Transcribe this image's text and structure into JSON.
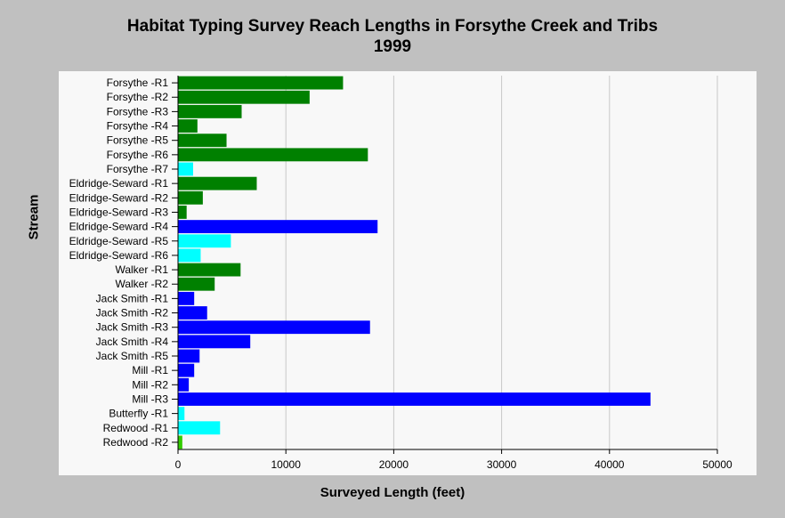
{
  "chart_data": {
    "type": "bar",
    "orientation": "horizontal",
    "title": "Habitat Typing Survey Reach Lengths in Forsythe Creek and Tribs",
    "subtitle": "1999",
    "xlabel": "Surveyed Length (feet)",
    "ylabel": "Stream",
    "xlim": [
      0,
      50000
    ],
    "xticks": [
      "0",
      "10000",
      "20000",
      "30000",
      "40000",
      "50000"
    ],
    "grid": "vertical",
    "legend": "none",
    "categories": [
      "Forsythe -R1",
      "Forsythe -R2",
      "Forsythe -R3",
      "Forsythe -R4",
      "Forsythe -R5",
      "Forsythe -R6",
      "Forsythe -R7",
      "Eldridge-Seward -R1",
      "Eldridge-Seward -R2",
      "Eldridge-Seward -R3",
      "Eldridge-Seward -R4",
      "Eldridge-Seward -R5",
      "Eldridge-Seward -R6",
      "Walker -R1",
      "Walker -R2",
      "Jack Smith -R1",
      "Jack Smith -R2",
      "Jack Smith -R3",
      "Jack Smith -R4",
      "Jack Smith -R5",
      "Mill -R1",
      "Mill -R2",
      "Mill -R3",
      "Butterfly -R1",
      "Redwood -R1",
      "Redwood -R2"
    ],
    "values": [
      15300,
      12200,
      5900,
      1800,
      4500,
      17600,
      1400,
      7300,
      2300,
      800,
      18500,
      4900,
      2100,
      5800,
      3400,
      1500,
      2700,
      17800,
      6700,
      2000,
      1500,
      1000,
      43800,
      600,
      3900,
      400
    ],
    "colors": [
      "#008000",
      "#008000",
      "#008000",
      "#008000",
      "#008000",
      "#008000",
      "#00ffff",
      "#008000",
      "#008000",
      "#008000",
      "#0000ff",
      "#00ffff",
      "#00ffff",
      "#008000",
      "#008000",
      "#0000ff",
      "#0000ff",
      "#0000ff",
      "#0000ff",
      "#0000ff",
      "#0000ff",
      "#0000ff",
      "#0000ff",
      "#00ffff",
      "#00ffff",
      "#33cc00"
    ]
  }
}
